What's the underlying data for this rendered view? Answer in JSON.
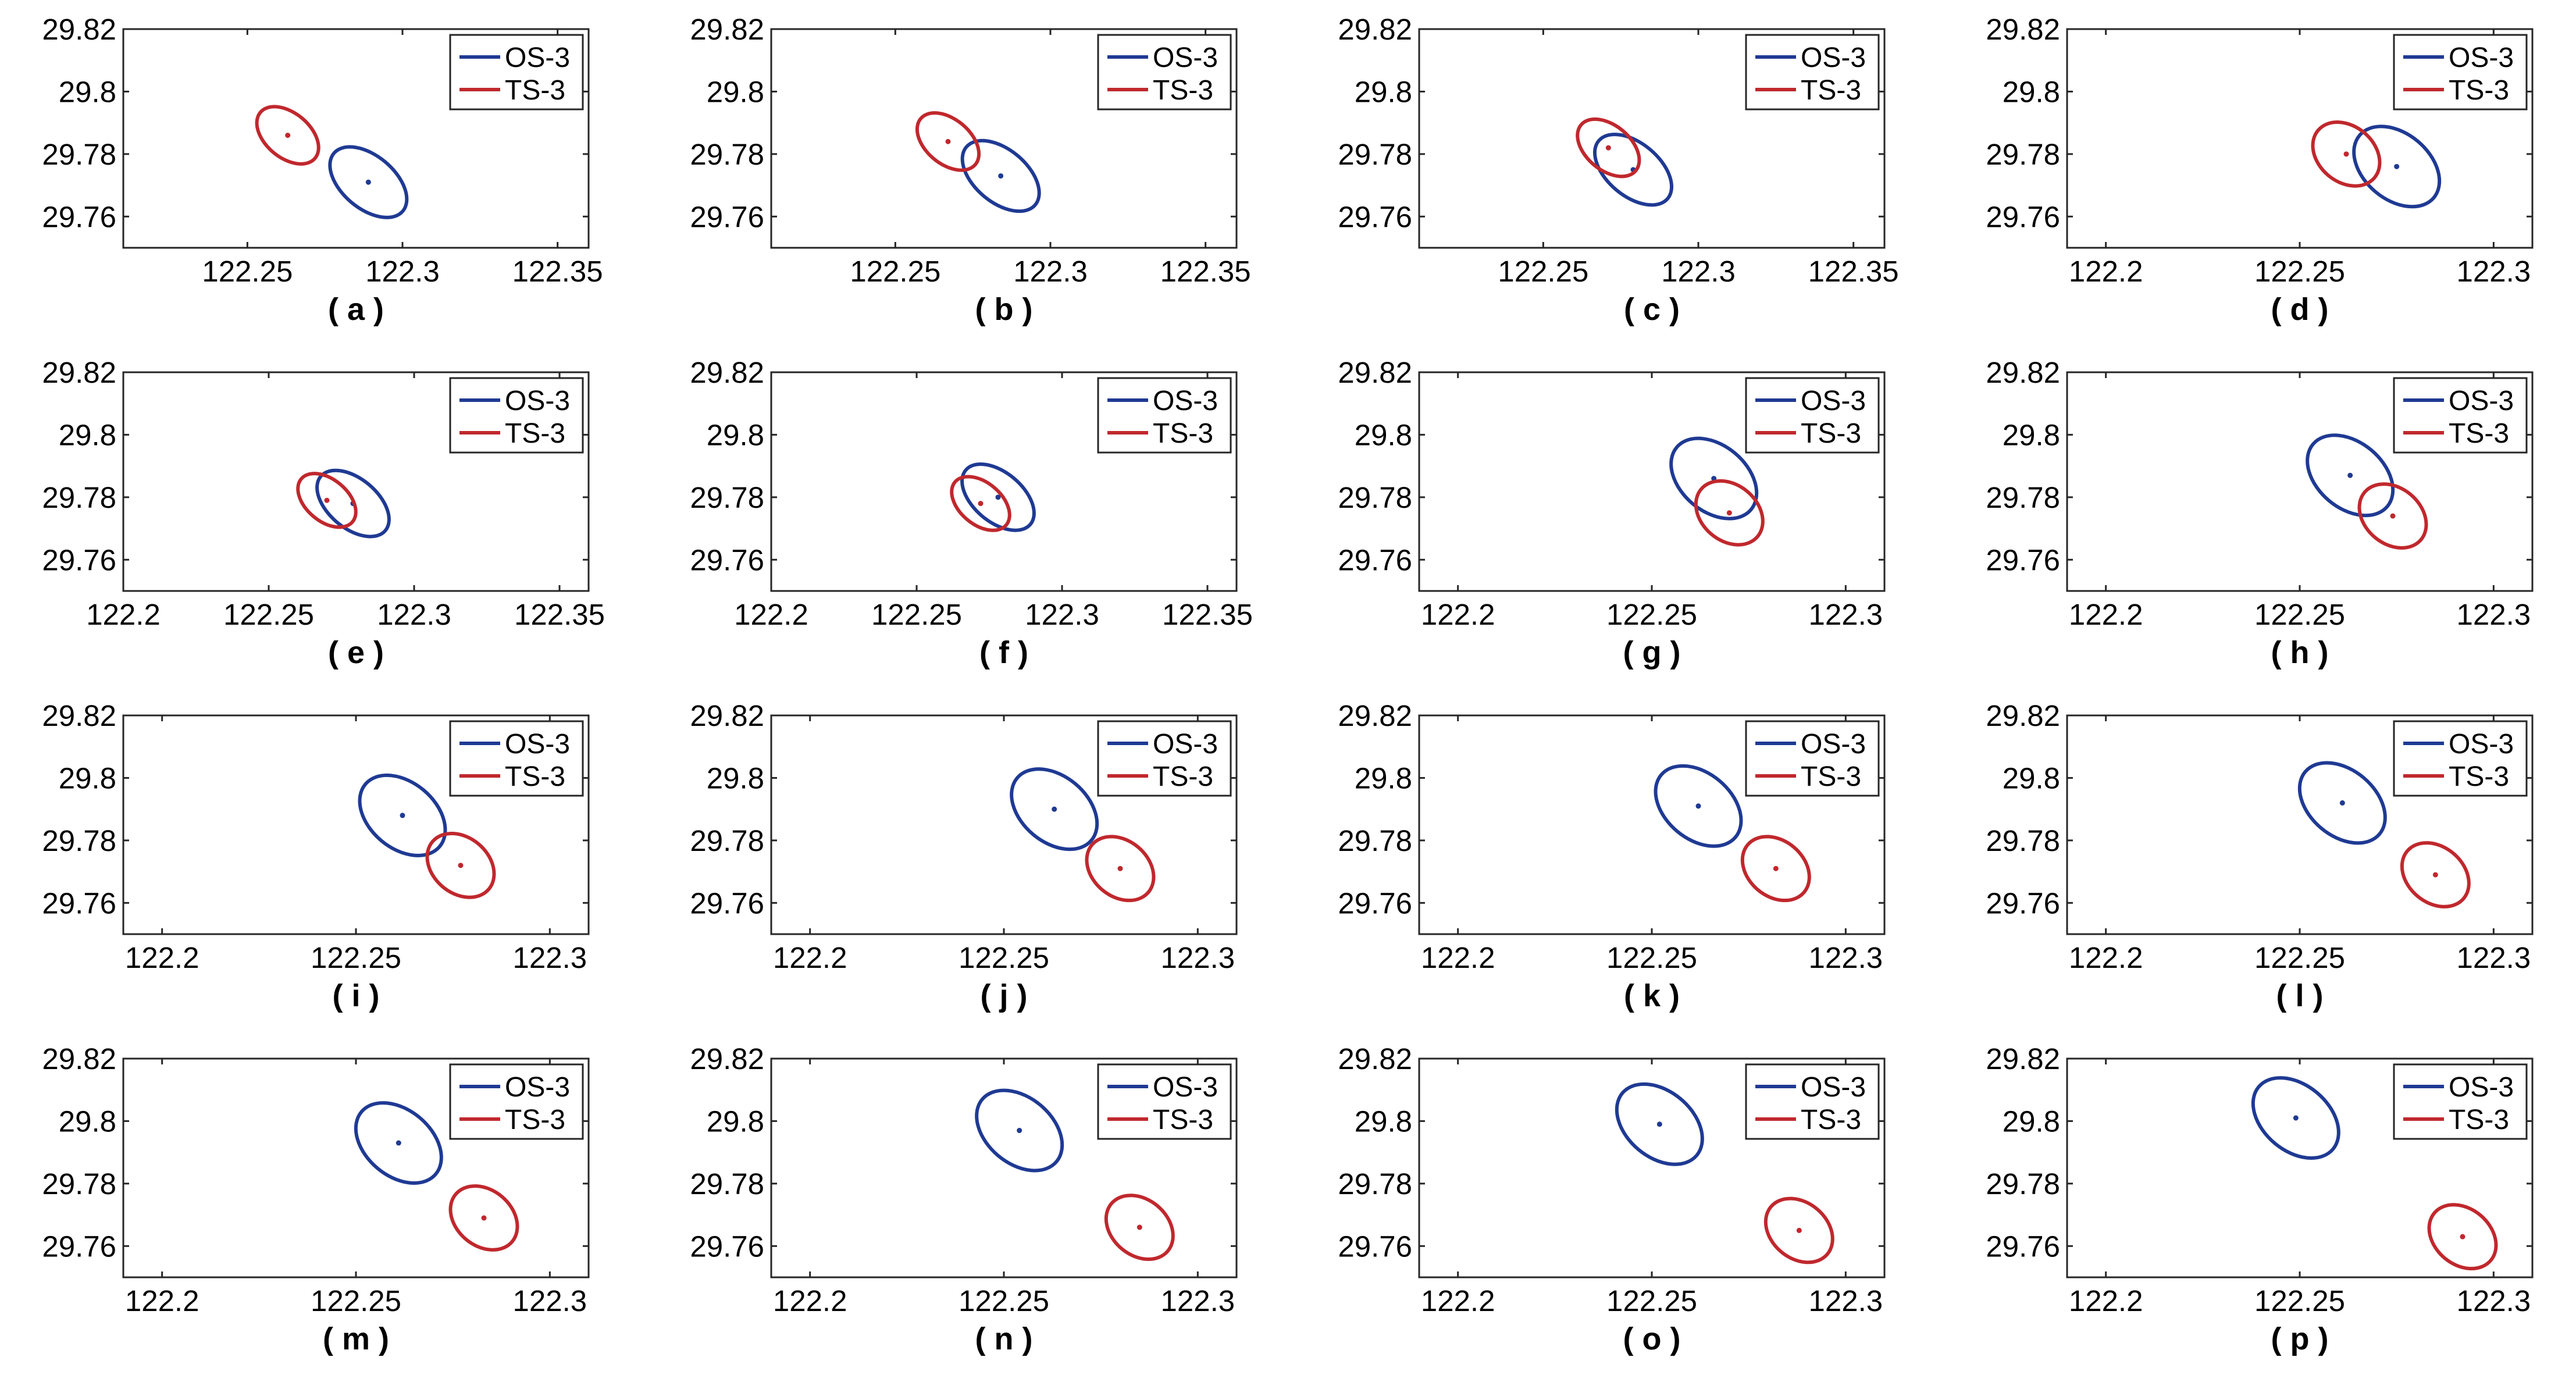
{
  "figure": {
    "series_names": [
      "OS-3",
      "TS-3"
    ],
    "colors": {
      "OS-3": "#1f3a93",
      "TS-3": "#c0282d",
      "axes": "#262626"
    }
  },
  "chart_data": [
    {
      "label": "( a )",
      "type": "scatter",
      "xlim": [
        122.21,
        122.36
      ],
      "ylim": [
        29.75,
        29.82
      ],
      "xticks": [
        "122.25",
        "122.3",
        "122.35"
      ],
      "yticks": [
        "29.82",
        "29.8",
        "29.78",
        "29.76"
      ],
      "legend": "top-right",
      "series": [
        {
          "name": "OS-3",
          "center": [
            122.289,
            29.771
          ],
          "radii": [
            0.0145,
            0.0085
          ],
          "angle": -40
        },
        {
          "name": "TS-3",
          "center": [
            122.263,
            29.786
          ],
          "radii": [
            0.0115,
            0.0072
          ],
          "angle": -40
        }
      ]
    },
    {
      "label": "( b )",
      "type": "scatter",
      "xlim": [
        122.21,
        122.36
      ],
      "ylim": [
        29.75,
        29.82
      ],
      "xticks": [
        "122.25",
        "122.3",
        "122.35"
      ],
      "yticks": [
        "29.82",
        "29.8",
        "29.78",
        "29.76"
      ],
      "legend": "top-right",
      "series": [
        {
          "name": "OS-3",
          "center": [
            122.284,
            29.773
          ],
          "radii": [
            0.0145,
            0.0085
          ],
          "angle": -40
        },
        {
          "name": "TS-3",
          "center": [
            122.267,
            29.784
          ],
          "radii": [
            0.0115,
            0.0072
          ],
          "angle": -40
        }
      ]
    },
    {
      "label": "( c )",
      "type": "scatter",
      "xlim": [
        122.21,
        122.36
      ],
      "ylim": [
        29.75,
        29.82
      ],
      "xticks": [
        "122.25",
        "122.3",
        "122.35"
      ],
      "yticks": [
        "29.82",
        "29.8",
        "29.78",
        "29.76"
      ],
      "legend": "top-right",
      "series": [
        {
          "name": "OS-3",
          "center": [
            122.279,
            29.775
          ],
          "radii": [
            0.0145,
            0.0085
          ],
          "angle": -40
        },
        {
          "name": "TS-3",
          "center": [
            122.271,
            29.782
          ],
          "radii": [
            0.0115,
            0.0072
          ],
          "angle": -40
        }
      ]
    },
    {
      "label": "( d )",
      "type": "scatter",
      "xlim": [
        122.19,
        122.31
      ],
      "ylim": [
        29.75,
        29.82
      ],
      "xticks": [
        "122.2",
        "122.25",
        "122.3"
      ],
      "yticks": [
        "29.82",
        "29.8",
        "29.78",
        "29.76"
      ],
      "legend": "top-right",
      "series": [
        {
          "name": "OS-3",
          "center": [
            122.275,
            29.776
          ],
          "radii": [
            0.0125,
            0.0085
          ],
          "angle": -40
        },
        {
          "name": "TS-3",
          "center": [
            122.262,
            29.78
          ],
          "radii": [
            0.0095,
            0.0072
          ],
          "angle": -40
        }
      ]
    },
    {
      "label": "( e )",
      "type": "scatter",
      "xlim": [
        122.2,
        122.36
      ],
      "ylim": [
        29.75,
        29.82
      ],
      "xticks": [
        "122.2",
        "122.25",
        "122.3",
        "122.35"
      ],
      "yticks": [
        "29.82",
        "29.8",
        "29.78",
        "29.76"
      ],
      "legend": "top-right",
      "series": [
        {
          "name": "OS-3",
          "center": [
            122.279,
            29.778
          ],
          "radii": [
            0.0145,
            0.0085
          ],
          "angle": -40
        },
        {
          "name": "TS-3",
          "center": [
            122.27,
            29.779
          ],
          "radii": [
            0.0115,
            0.0072
          ],
          "angle": -40
        }
      ]
    },
    {
      "label": "( f )",
      "type": "scatter",
      "xlim": [
        122.2,
        122.36
      ],
      "ylim": [
        29.75,
        29.82
      ],
      "xticks": [
        "122.2",
        "122.25",
        "122.3",
        "122.35"
      ],
      "yticks": [
        "29.82",
        "29.8",
        "29.78",
        "29.76"
      ],
      "legend": "top-right",
      "series": [
        {
          "name": "OS-3",
          "center": [
            122.278,
            29.78
          ],
          "radii": [
            0.0145,
            0.0085
          ],
          "angle": -40
        },
        {
          "name": "TS-3",
          "center": [
            122.272,
            29.778
          ],
          "radii": [
            0.0115,
            0.0072
          ],
          "angle": -40
        }
      ]
    },
    {
      "label": "( g )",
      "type": "scatter",
      "xlim": [
        122.19,
        122.31
      ],
      "ylim": [
        29.75,
        29.82
      ],
      "xticks": [
        "122.2",
        "122.25",
        "122.3"
      ],
      "yticks": [
        "29.82",
        "29.8",
        "29.78",
        "29.76"
      ],
      "legend": "top-right",
      "series": [
        {
          "name": "OS-3",
          "center": [
            122.266,
            29.786
          ],
          "radii": [
            0.0125,
            0.0085
          ],
          "angle": -40
        },
        {
          "name": "TS-3",
          "center": [
            122.27,
            29.775
          ],
          "radii": [
            0.0095,
            0.0072
          ],
          "angle": -40
        }
      ]
    },
    {
      "label": "( h )",
      "type": "scatter",
      "xlim": [
        122.19,
        122.31
      ],
      "ylim": [
        29.75,
        29.82
      ],
      "xticks": [
        "122.2",
        "122.25",
        "122.3"
      ],
      "yticks": [
        "29.82",
        "29.8",
        "29.78",
        "29.76"
      ],
      "legend": "top-right",
      "series": [
        {
          "name": "OS-3",
          "center": [
            122.263,
            29.787
          ],
          "radii": [
            0.0125,
            0.0085
          ],
          "angle": -40
        },
        {
          "name": "TS-3",
          "center": [
            122.274,
            29.774
          ],
          "radii": [
            0.0095,
            0.0072
          ],
          "angle": -40
        }
      ]
    },
    {
      "label": "( i )",
      "type": "scatter",
      "xlim": [
        122.19,
        122.31
      ],
      "ylim": [
        29.75,
        29.82
      ],
      "xticks": [
        "122.2",
        "122.25",
        "122.3"
      ],
      "yticks": [
        "29.82",
        "29.8",
        "29.78",
        "29.76"
      ],
      "legend": "top-right",
      "series": [
        {
          "name": "OS-3",
          "center": [
            122.262,
            29.788
          ],
          "radii": [
            0.0125,
            0.0085
          ],
          "angle": -40
        },
        {
          "name": "TS-3",
          "center": [
            122.277,
            29.772
          ],
          "radii": [
            0.0095,
            0.0072
          ],
          "angle": -40
        }
      ]
    },
    {
      "label": "( j )",
      "type": "scatter",
      "xlim": [
        122.19,
        122.31
      ],
      "ylim": [
        29.75,
        29.82
      ],
      "xticks": [
        "122.2",
        "122.25",
        "122.3"
      ],
      "yticks": [
        "29.82",
        "29.8",
        "29.78",
        "29.76"
      ],
      "legend": "top-right",
      "series": [
        {
          "name": "OS-3",
          "center": [
            122.263,
            29.79
          ],
          "radii": [
            0.0125,
            0.0085
          ],
          "angle": -40
        },
        {
          "name": "TS-3",
          "center": [
            122.28,
            29.771
          ],
          "radii": [
            0.0095,
            0.0072
          ],
          "angle": -40
        }
      ]
    },
    {
      "label": "( k )",
      "type": "scatter",
      "xlim": [
        122.19,
        122.31
      ],
      "ylim": [
        29.75,
        29.82
      ],
      "xticks": [
        "122.2",
        "122.25",
        "122.3"
      ],
      "yticks": [
        "29.82",
        "29.8",
        "29.78",
        "29.76"
      ],
      "legend": "top-right",
      "series": [
        {
          "name": "OS-3",
          "center": [
            122.262,
            29.791
          ],
          "radii": [
            0.0125,
            0.0085
          ],
          "angle": -40
        },
        {
          "name": "TS-3",
          "center": [
            122.282,
            29.771
          ],
          "radii": [
            0.0095,
            0.0072
          ],
          "angle": -40
        }
      ]
    },
    {
      "label": "( l )",
      "type": "scatter",
      "xlim": [
        122.19,
        122.31
      ],
      "ylim": [
        29.75,
        29.82
      ],
      "xticks": [
        "122.2",
        "122.25",
        "122.3"
      ],
      "yticks": [
        "29.82",
        "29.8",
        "29.78",
        "29.76"
      ],
      "legend": "top-right",
      "series": [
        {
          "name": "OS-3",
          "center": [
            122.261,
            29.792
          ],
          "radii": [
            0.0125,
            0.0085
          ],
          "angle": -40
        },
        {
          "name": "TS-3",
          "center": [
            122.285,
            29.769
          ],
          "radii": [
            0.0095,
            0.0072
          ],
          "angle": -40
        }
      ]
    },
    {
      "label": "( m )",
      "type": "scatter",
      "xlim": [
        122.19,
        122.31
      ],
      "ylim": [
        29.75,
        29.82
      ],
      "xticks": [
        "122.2",
        "122.25",
        "122.3"
      ],
      "yticks": [
        "29.82",
        "29.8",
        "29.78",
        "29.76"
      ],
      "legend": "top-right",
      "series": [
        {
          "name": "OS-3",
          "center": [
            122.261,
            29.793
          ],
          "radii": [
            0.0125,
            0.0085
          ],
          "angle": -40
        },
        {
          "name": "TS-3",
          "center": [
            122.283,
            29.769
          ],
          "radii": [
            0.0095,
            0.0072
          ],
          "angle": -40
        }
      ]
    },
    {
      "label": "( n )",
      "type": "scatter",
      "xlim": [
        122.19,
        122.31
      ],
      "ylim": [
        29.75,
        29.82
      ],
      "xticks": [
        "122.2",
        "122.25",
        "122.3"
      ],
      "yticks": [
        "29.82",
        "29.8",
        "29.78",
        "29.76"
      ],
      "legend": "top-right",
      "series": [
        {
          "name": "OS-3",
          "center": [
            122.254,
            29.797
          ],
          "radii": [
            0.0125,
            0.0085
          ],
          "angle": -40
        },
        {
          "name": "TS-3",
          "center": [
            122.285,
            29.766
          ],
          "radii": [
            0.0095,
            0.0072
          ],
          "angle": -40
        }
      ]
    },
    {
      "label": "( o )",
      "type": "scatter",
      "xlim": [
        122.19,
        122.31
      ],
      "ylim": [
        29.75,
        29.82
      ],
      "xticks": [
        "122.2",
        "122.25",
        "122.3"
      ],
      "yticks": [
        "29.82",
        "29.8",
        "29.78",
        "29.76"
      ],
      "legend": "top-right",
      "series": [
        {
          "name": "OS-3",
          "center": [
            122.252,
            29.799
          ],
          "radii": [
            0.0125,
            0.0085
          ],
          "angle": -40
        },
        {
          "name": "TS-3",
          "center": [
            122.288,
            29.765
          ],
          "radii": [
            0.0095,
            0.0072
          ],
          "angle": -40
        }
      ]
    },
    {
      "label": "( p )",
      "type": "scatter",
      "xlim": [
        122.19,
        122.31
      ],
      "ylim": [
        29.75,
        29.82
      ],
      "xticks": [
        "122.2",
        "122.25",
        "122.3"
      ],
      "yticks": [
        "29.82",
        "29.8",
        "29.78",
        "29.76"
      ],
      "legend": "top-right",
      "series": [
        {
          "name": "OS-3",
          "center": [
            122.249,
            29.801
          ],
          "radii": [
            0.0125,
            0.0085
          ],
          "angle": -40
        },
        {
          "name": "TS-3",
          "center": [
            122.292,
            29.763
          ],
          "radii": [
            0.0095,
            0.0072
          ],
          "angle": -40
        }
      ]
    }
  ]
}
